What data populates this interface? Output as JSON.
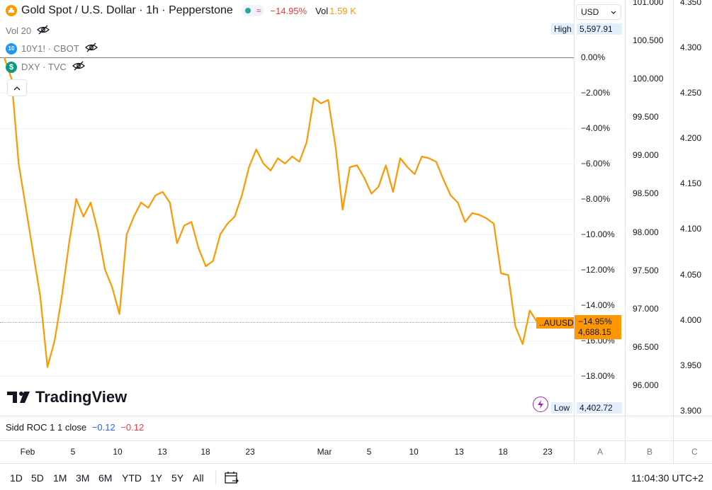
{
  "header": {
    "title": "Gold Spot / U.S. Dollar · 1h · Pepperstone",
    "change": "−14.95%",
    "vol_label": "Vol",
    "vol_value": "1.59 K",
    "currency": "USD"
  },
  "legend": {
    "vol20": "Vol 20",
    "ten_y_badge": "10",
    "ten_y": "10Y1! · CBOT",
    "dxy_badge": "$",
    "dxy": "DXY · TVC",
    "collapse": "^"
  },
  "scale_pct": {
    "ticks": [
      "0.00%",
      "−2.00%",
      "−4.00%",
      "−6.00%",
      "−8.00%",
      "−10.00%",
      "−12.00%",
      "−14.00%",
      "−16.00%",
      "−18.00%"
    ]
  },
  "scale_b": {
    "ticks": [
      "101.000",
      "100.500",
      "100.000",
      "99.500",
      "99.000",
      "98.500",
      "98.000",
      "97.500",
      "97.000",
      "96.500",
      "96.000"
    ]
  },
  "scale_c": {
    "ticks": [
      "4.350",
      "4.300",
      "4.250",
      "4.200",
      "4.150",
      "4.100",
      "4.050",
      "4.000",
      "3.950",
      "3.900"
    ]
  },
  "markers": {
    "high_label": "High",
    "high_value": "5,597.91",
    "low_label": "Low",
    "low_value": "4,402.72",
    "current_pct": "−14.95%",
    "current_price": "4,688.15",
    "symbol_tag": "..AUUSD"
  },
  "indicator": {
    "name": "Sidd ROC 1 1 close",
    "v1": "−0.12",
    "v2": "−0.12"
  },
  "time_axis": [
    "Feb",
    "5",
    "10",
    "13",
    "18",
    "23",
    "Mar",
    "5",
    "10",
    "13",
    "18",
    "23"
  ],
  "scale_letters": [
    "A",
    "B",
    "C"
  ],
  "ranges": [
    "1D",
    "5D",
    "1M",
    "3M",
    "6M",
    "YTD",
    "1Y",
    "5Y",
    "All"
  ],
  "clock": "11:04:30 UTC+2",
  "logo_text": "TradingView",
  "colors": {
    "series": "#ff9800",
    "negative": "#f23645",
    "blue": "#2962ff"
  },
  "chart_data": {
    "type": "line",
    "series": [
      {
        "name": "Gold Spot / U.S. Dollar",
        "unit": "percent change",
        "values": [
          0.0,
          -1.2,
          -6.0,
          -8.5,
          -11.0,
          -13.5,
          -17.5,
          -16.0,
          -13.5,
          -10.5,
          -8.0,
          -9.0,
          -8.2,
          -9.8,
          -12.0,
          -13.0,
          -14.5,
          -10.0,
          -9.0,
          -8.2,
          -8.5,
          -7.8,
          -7.6,
          -8.2,
          -10.5,
          -9.5,
          -9.3,
          -10.8,
          -11.8,
          -11.5,
          -10.0,
          -9.4,
          -9.0,
          -7.8,
          -6.2,
          -5.2,
          -6.0,
          -6.4,
          -5.7,
          -6.0,
          -5.6,
          -5.9,
          -4.8,
          -2.3,
          -2.6,
          -2.4,
          -5.0,
          -8.6,
          -6.2,
          -6.1,
          -6.8,
          -7.7,
          -7.3,
          -6.1,
          -7.6,
          -5.7,
          -6.2,
          -6.6,
          -5.6,
          -5.7,
          -5.9,
          -6.9,
          -7.8,
          -8.2,
          -9.3,
          -8.8,
          -8.9,
          -9.1,
          -9.4,
          -12.2,
          -12.3,
          -15.2,
          -16.2,
          -14.3,
          -14.95
        ]
      }
    ],
    "ylim": [
      -18.8,
      1.0
    ]
  }
}
